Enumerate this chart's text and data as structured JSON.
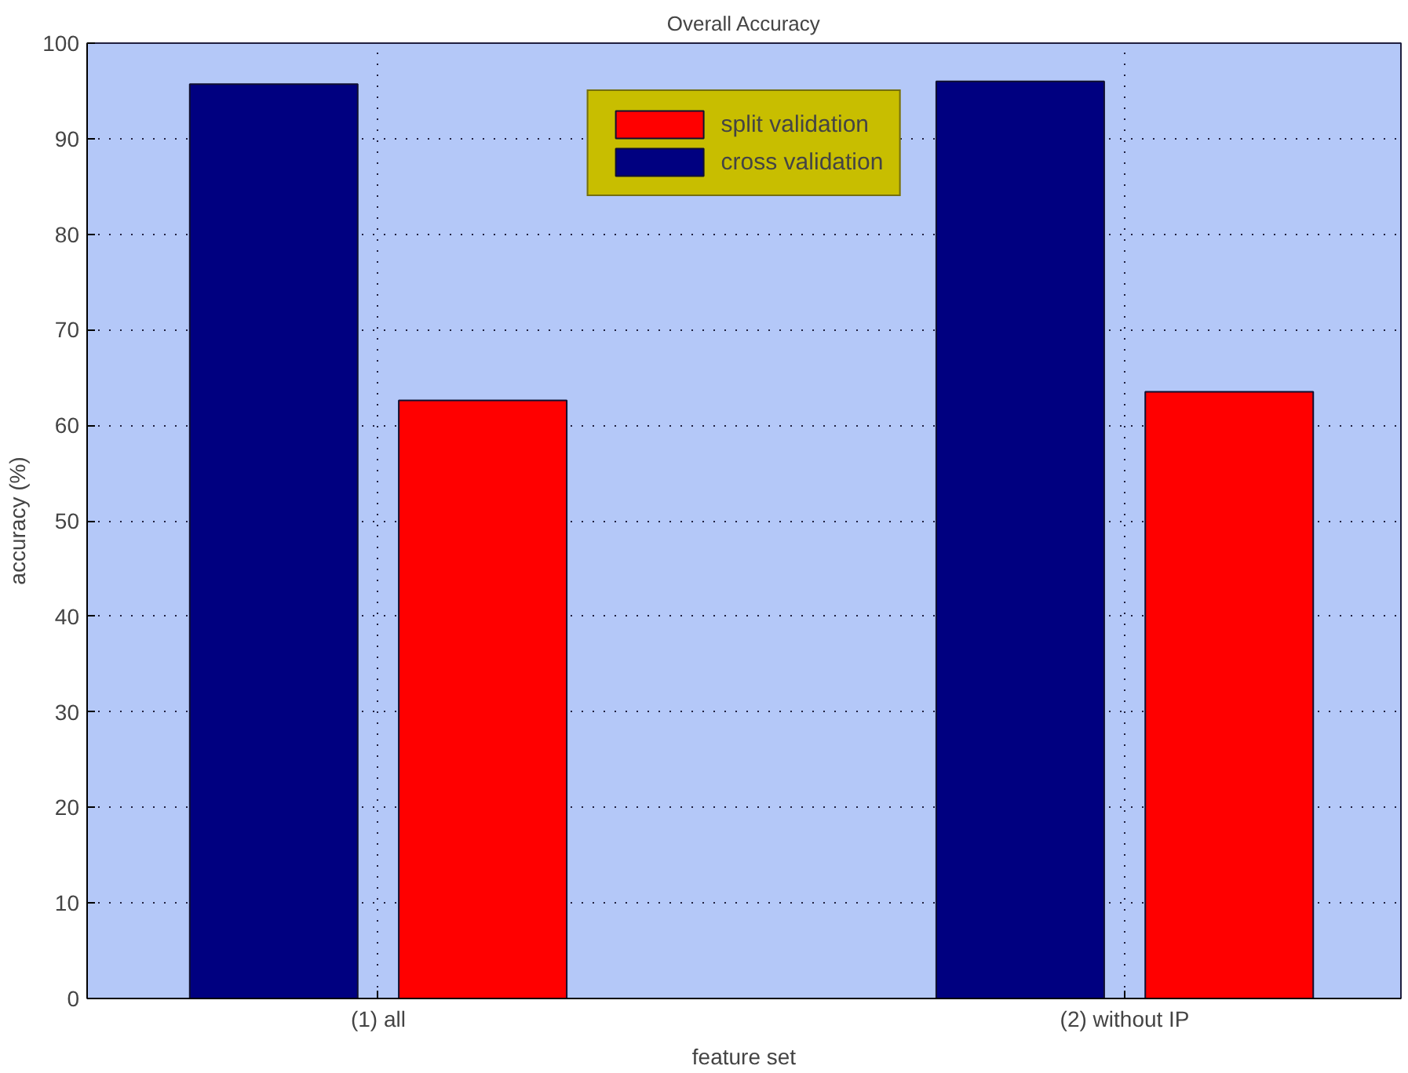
{
  "chart_data": {
    "type": "bar",
    "title": "Overall Accuracy",
    "xlabel": "feature set",
    "ylabel": "accuracy (%)",
    "categories": [
      "(1) all",
      "(2) without IP"
    ],
    "series": [
      {
        "name": "cross validation",
        "color": "#000080",
        "values": [
          95.7,
          96.0
        ]
      },
      {
        "name": "split validation",
        "color": "#ff0000",
        "values": [
          62.6,
          63.5
        ]
      }
    ],
    "ylim": [
      0,
      100
    ],
    "yticks": [
      0,
      10,
      20,
      30,
      40,
      50,
      60,
      70,
      80,
      90,
      100
    ],
    "grid": true,
    "legend": "top"
  }
}
